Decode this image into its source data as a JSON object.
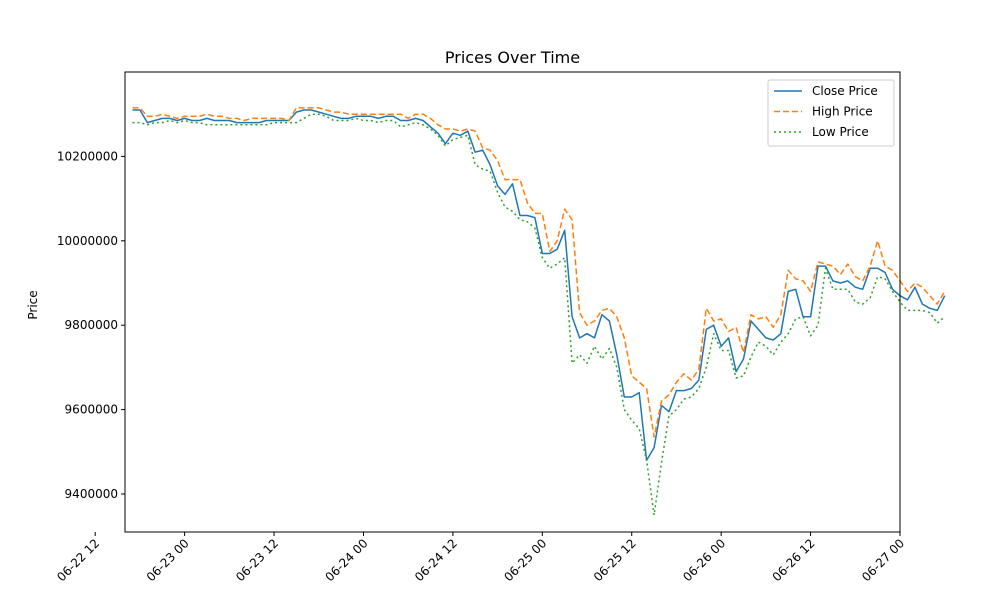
{
  "chart_data": {
    "type": "line",
    "title": "Prices Over Time",
    "xlabel": "",
    "ylabel": "Price",
    "ylim": [
      9310000,
      10400000
    ],
    "xlim": [
      "2024-06-22 16:00",
      "2024-06-27 00:00"
    ],
    "grid": false,
    "legend_position": "top-right",
    "x_tick_labels": [
      "06-22 12",
      "06-23 00",
      "06-23 12",
      "06-24 00",
      "06-24 12",
      "06-25 00",
      "06-25 12",
      "06-26 00",
      "06-26 12",
      "06-27 00"
    ],
    "y_tick_labels": [
      "9400000",
      "9600000",
      "9800000",
      "10000000",
      "10200000"
    ],
    "x_start": "2024-06-22 17:00",
    "x_interval_hours": 1,
    "series": [
      {
        "name": "Close Price",
        "color": "#1f77b4",
        "style": "solid",
        "values": [
          10310000,
          10310000,
          10280000,
          10285000,
          10290000,
          10290000,
          10285000,
          10290000,
          10285000,
          10285000,
          10290000,
          10285000,
          10285000,
          10285000,
          10280000,
          10280000,
          10280000,
          10280000,
          10285000,
          10285000,
          10285000,
          10285000,
          10305000,
          10310000,
          10310000,
          10305000,
          10300000,
          10295000,
          10290000,
          10290000,
          10295000,
          10295000,
          10295000,
          10290000,
          10295000,
          10295000,
          10285000,
          10285000,
          10290000,
          10285000,
          10270000,
          10255000,
          10230000,
          10255000,
          10250000,
          10260000,
          10210000,
          10215000,
          10180000,
          10130000,
          10110000,
          10135000,
          10060000,
          10060000,
          10055000,
          9970000,
          9970000,
          9980000,
          10025000,
          9820000,
          9770000,
          9780000,
          9770000,
          9825000,
          9810000,
          9730000,
          9630000,
          9630000,
          9640000,
          9480000,
          9510000,
          9610000,
          9595000,
          9645000,
          9645000,
          9650000,
          9670000,
          9790000,
          9800000,
          9750000,
          9770000,
          9690000,
          9720000,
          9810000,
          9790000,
          9770000,
          9765000,
          9780000,
          9880000,
          9885000,
          9820000,
          9820000,
          9940000,
          9940000,
          9905000,
          9900000,
          9905000,
          9890000,
          9885000,
          9935000,
          9935000,
          9925000,
          9885000,
          9870000,
          9860000,
          9890000,
          9850000,
          9840000,
          9835000,
          9870000
        ]
      },
      {
        "name": "High Price",
        "color": "#ff7f0e",
        "style": "dashed",
        "values": [
          10315000,
          10315000,
          10295000,
          10295000,
          10300000,
          10295000,
          10290000,
          10295000,
          10295000,
          10295000,
          10300000,
          10295000,
          10295000,
          10290000,
          10290000,
          10285000,
          10290000,
          10290000,
          10290000,
          10290000,
          10290000,
          10285000,
          10315000,
          10315000,
          10315000,
          10315000,
          10310000,
          10305000,
          10305000,
          10300000,
          10300000,
          10300000,
          10300000,
          10300000,
          10300000,
          10300000,
          10300000,
          10290000,
          10300000,
          10300000,
          10290000,
          10275000,
          10265000,
          10265000,
          10260000,
          10265000,
          10260000,
          10220000,
          10215000,
          10190000,
          10145000,
          10145000,
          10145000,
          10090000,
          10065000,
          10065000,
          9975000,
          10000000,
          10075000,
          10050000,
          9830000,
          9800000,
          9810000,
          9835000,
          9840000,
          9820000,
          9770000,
          9680000,
          9665000,
          9650000,
          9535000,
          9620000,
          9635000,
          9665000,
          9685000,
          9670000,
          9695000,
          9840000,
          9810000,
          9815000,
          9785000,
          9795000,
          9735000,
          9825000,
          9815000,
          9820000,
          9795000,
          9825000,
          9930000,
          9910000,
          9905000,
          9880000,
          9950000,
          9945000,
          9940000,
          9920000,
          9945000,
          9915000,
          9905000,
          9940000,
          10000000,
          9940000,
          9930000,
          9905000,
          9880000,
          9900000,
          9890000,
          9870000,
          9850000,
          9880000
        ]
      },
      {
        "name": "Low Price",
        "color": "#2ca02c",
        "style": "dotted",
        "values": [
          10280000,
          10280000,
          10275000,
          10280000,
          10280000,
          10285000,
          10280000,
          10285000,
          10280000,
          10280000,
          10275000,
          10275000,
          10275000,
          10275000,
          10275000,
          10275000,
          10275000,
          10275000,
          10275000,
          10280000,
          10280000,
          10280000,
          10280000,
          10290000,
          10300000,
          10300000,
          10295000,
          10285000,
          10285000,
          10285000,
          10290000,
          10285000,
          10285000,
          10280000,
          10285000,
          10285000,
          10270000,
          10275000,
          10280000,
          10275000,
          10265000,
          10250000,
          10225000,
          10240000,
          10245000,
          10250000,
          10180000,
          10170000,
          10165000,
          10115000,
          10080000,
          10070000,
          10050000,
          10045000,
          10030000,
          9960000,
          9935000,
          9945000,
          9960000,
          9710000,
          9730000,
          9710000,
          9750000,
          9720000,
          9745000,
          9700000,
          9600000,
          9575000,
          9555000,
          9480000,
          9350000,
          9475000,
          9585000,
          9600000,
          9625000,
          9630000,
          9650000,
          9700000,
          9780000,
          9740000,
          9740000,
          9675000,
          9680000,
          9725000,
          9760000,
          9750000,
          9730000,
          9760000,
          9780000,
          9815000,
          9820000,
          9775000,
          9800000,
          9935000,
          9885000,
          9885000,
          9885000,
          9855000,
          9850000,
          9865000,
          9915000,
          9910000,
          9880000,
          9855000,
          9835000,
          9835000,
          9835000,
          9830000,
          9805000,
          9820000
        ]
      }
    ]
  }
}
